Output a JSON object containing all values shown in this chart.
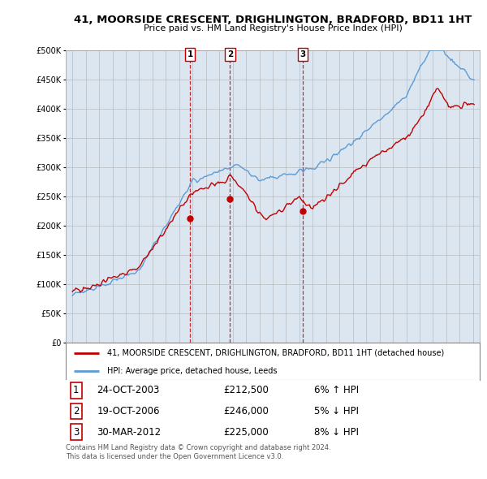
{
  "title": "41, MOORSIDE CRESCENT, DRIGHLINGTON, BRADFORD, BD11 1HT",
  "subtitle": "Price paid vs. HM Land Registry's House Price Index (HPI)",
  "legend_line1": "41, MOORSIDE CRESCENT, DRIGHLINGTON, BRADFORD, BD11 1HT (detached house)",
  "legend_line2": "HPI: Average price, detached house, Leeds",
  "footnote1": "Contains HM Land Registry data © Crown copyright and database right 2024.",
  "footnote2": "This data is licensed under the Open Government Licence v3.0.",
  "transactions": [
    {
      "label": "1",
      "date": "24-OCT-2003",
      "price": "£212,500",
      "pct": "6% ↑ HPI",
      "year": 2003.81
    },
    {
      "label": "2",
      "date": "19-OCT-2006",
      "price": "£246,000",
      "pct": "5% ↓ HPI",
      "year": 2006.8
    },
    {
      "label": "3",
      "date": "30-MAR-2012",
      "price": "£225,000",
      "pct": "8% ↓ HPI",
      "year": 2012.25
    }
  ],
  "transaction_values": [
    212500,
    246000,
    225000
  ],
  "hpi_color": "#5b9bd5",
  "price_color": "#c00000",
  "chart_bg": "#dce6f1",
  "background_color": "#ffffff",
  "grid_color": "#aaaaaa",
  "ylim": [
    0,
    500000
  ],
  "yticks": [
    0,
    50000,
    100000,
    150000,
    200000,
    250000,
    300000,
    350000,
    400000,
    450000,
    500000
  ],
  "xlim_left": 1994.5,
  "xlim_right": 2025.5
}
